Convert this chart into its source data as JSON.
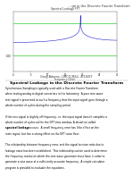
{
  "title_top": "...ge in the Discrete Fourier Transform",
  "author": "Greg Adams, LMCO MS2, 4/10/07",
  "section_title": "Spectral Leakage in the Discrete Fourier Transform",
  "body_text": [
    "Synchronous Sampling is typically used with a Discrete Fourier Transform",
    "when testing analog to digital converters in the laboratory.  A pure sine wave",
    "test signal is presented at such a frequency that the input signal goes through a",
    "whole number of cycles during the sampling period.",
    "",
    "If the test signal is slightly off frequency, i.e. the input signal doesn't complete a",
    "whole number of cycles within the DFT time window, A distortion called",
    "spectral leakage occurs.  A small frequency error has little effect on the",
    "main signal, but has a strong effect on the DFT noise floor.",
    "",
    "The relationship between frequency error, and the signal to noise ratio due to",
    "leakage noise has been established.  This relationship can be used to determine",
    "the frequency resolution which the sine wave generator must have in order to",
    "generate a sine wave at a sufficiently accurate frequency.  A simple calculator",
    "program is provided to evaluate the equations."
  ],
  "bold_phrase": "spectral leakage",
  "background_color": "#ffffff",
  "plot_title": "Spectral Leakage FFT",
  "xlabel": "Frequency (GHz)",
  "line_color_main": "#0000cc",
  "line_color_green1": "#00bb00",
  "line_color_green2": "#00bb00",
  "green_y1": -20,
  "green_y2": -100,
  "ylim": [
    -140,
    10
  ],
  "xlim": [
    0,
    30
  ],
  "ytick_vals": [
    -100
  ],
  "ytick_labels": [
    "-100"
  ],
  "xtick_vals": [
    0,
    5,
    10,
    15,
    20,
    25,
    30
  ],
  "xtick_labels": [
    "0",
    "5",
    "10",
    "15",
    "20",
    "25",
    "30"
  ]
}
